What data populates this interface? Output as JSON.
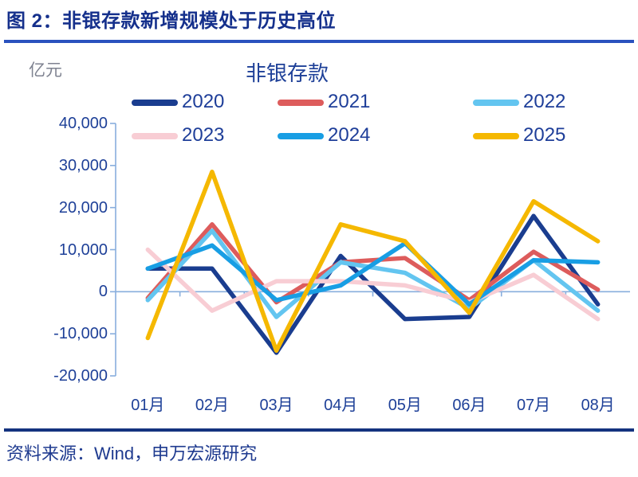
{
  "figure": {
    "title": "图 2：非银存款新增规模处于历史高位",
    "source": "资料来源：Wind，申万宏源研究"
  },
  "chart_data": {
    "type": "line",
    "title": "非银存款",
    "ylabel": "亿元",
    "xlabel": "",
    "ylim": [
      -20000,
      40000
    ],
    "ytick_step": 10000,
    "ytick_labels": [
      "40,000",
      "30,000",
      "20,000",
      "10,000",
      "0",
      "-10,000",
      "-20,000"
    ],
    "grid": "off",
    "legend_position": "top",
    "categories": [
      "01月",
      "02月",
      "03月",
      "04月",
      "05月",
      "06月",
      "07月",
      "08月"
    ],
    "series": [
      {
        "name": "2020",
        "color": "#1A3D8F",
        "values": [
          5500,
          5500,
          -14500,
          8500,
          -6500,
          -6000,
          18000,
          -3000
        ]
      },
      {
        "name": "2021",
        "color": "#DD5C5C",
        "values": [
          -1500,
          16000,
          -2500,
          7000,
          8000,
          -2000,
          9500,
          500
        ]
      },
      {
        "name": "2022",
        "color": "#63C5F0",
        "values": [
          -2000,
          14500,
          -6000,
          7000,
          4500,
          -4000,
          7500,
          -4500
        ]
      },
      {
        "name": "2023",
        "color": "#F8CDD4",
        "values": [
          10000,
          -4500,
          2500,
          2500,
          1500,
          -2500,
          4000,
          -6500
        ]
      },
      {
        "name": "2024",
        "color": "#189EE4",
        "values": [
          5500,
          11000,
          -2000,
          1500,
          11500,
          -3000,
          7500,
          7000
        ]
      },
      {
        "name": "2025",
        "color": "#F5B800",
        "values": [
          -11000,
          28500,
          -14000,
          16000,
          12000,
          -5000,
          21500,
          12000
        ]
      }
    ],
    "axis_color": "#88AEDD"
  },
  "colors": {
    "title_text": "#15308C",
    "title_rule": "#2A52BE",
    "bottom_rule": "#14337F",
    "tick_text": "#1E4098",
    "legend_text": "#1E3E99",
    "unit_text": "#7E8290"
  }
}
